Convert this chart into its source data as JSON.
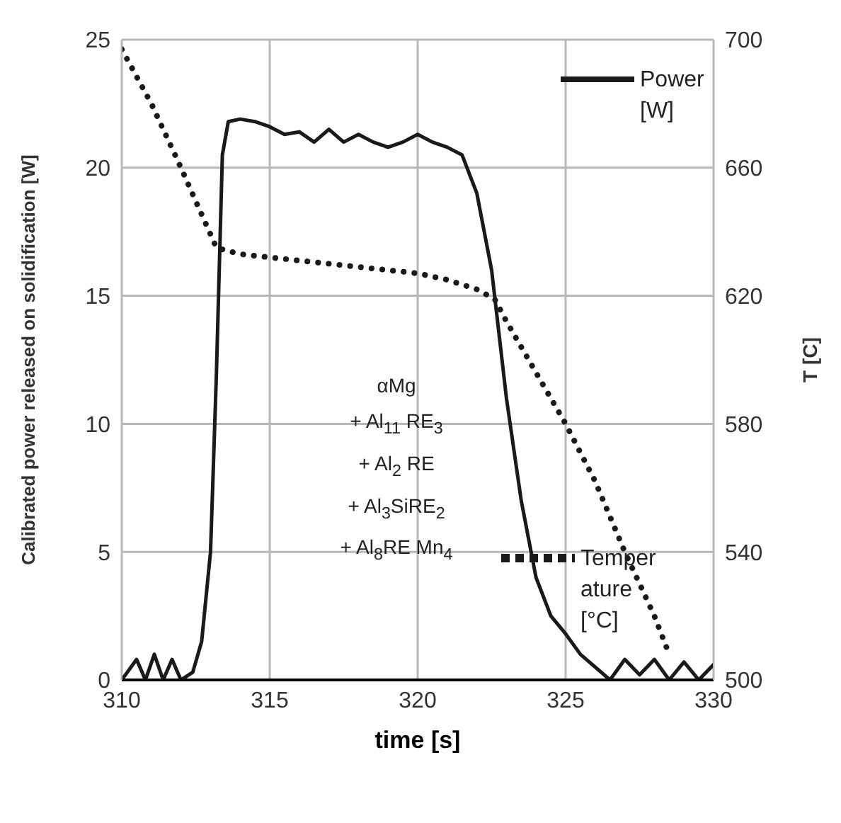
{
  "chart_data": {
    "type": "line",
    "xlabel": "time  [s]",
    "ylabel": "Calibrated power released on solidification  [W]",
    "y2label": "T [C]",
    "annotations": [
      "αMg",
      "+ Al$_{11}$ RE$_{3}$",
      "+ Al$_{2}$ RE",
      "+ Al$_{3}$SiRE$_{2}$",
      "+ Al$_{8}$RE Mn$_{4}$"
    ],
    "xlim": [
      310,
      330
    ],
    "xticks": [
      310,
      315,
      320,
      325,
      330
    ],
    "ylim": [
      0,
      25
    ],
    "yticks": [
      0,
      5,
      10,
      15,
      20,
      25
    ],
    "y2lim": [
      500,
      700
    ],
    "y2ticks": [
      500,
      540,
      580,
      620,
      660,
      700
    ],
    "grid": true,
    "legend": "right",
    "series": [
      {
        "name": "Power [W]",
        "color": "#1a1a1a",
        "line_style": "solid",
        "axis": "y",
        "x": [
          310,
          310.5,
          310.8,
          311.1,
          311.4,
          311.7,
          312,
          312.4,
          312.7,
          313,
          313.2,
          313.4,
          313.6,
          314,
          314.5,
          315,
          315.5,
          316,
          316.5,
          317,
          317.5,
          318,
          318.5,
          319,
          319.5,
          320,
          320.5,
          321,
          321.5,
          322,
          322.5,
          323,
          323.5,
          324,
          324.5,
          325,
          325.5,
          326,
          326.5,
          327,
          327.5,
          328,
          328.5,
          329,
          329.5,
          330
        ],
        "values": [
          0,
          0.8,
          0,
          1,
          0,
          0.8,
          0,
          0.3,
          1.5,
          5,
          12,
          20.5,
          21.8,
          21.9,
          21.8,
          21.6,
          21.3,
          21.4,
          21,
          21.5,
          21,
          21.3,
          21,
          20.8,
          21,
          21.3,
          21,
          20.8,
          20.5,
          19,
          16,
          11,
          7,
          4,
          2.5,
          1.8,
          1,
          0.5,
          0,
          0.8,
          0.2,
          0.8,
          0,
          0.7,
          0,
          0.6
        ]
      },
      {
        "name": "Temperature [°C]",
        "color": "#1a1a1a",
        "line_style": "dotted",
        "axis": "y2",
        "x": [
          310,
          311,
          312,
          313.2,
          314,
          315,
          316,
          317,
          318,
          319,
          320,
          321,
          322,
          322.6,
          323,
          323.5,
          324,
          324.5,
          325,
          325.5,
          326,
          326.5,
          327,
          327.5,
          328,
          328.5
        ],
        "values": [
          697,
          680,
          660,
          635,
          633,
          632,
          631,
          630,
          629,
          628,
          627,
          625,
          622,
          619,
          612,
          604,
          596,
          588,
          580,
          571,
          562,
          551,
          540,
          530,
          520,
          508
        ]
      }
    ]
  }
}
